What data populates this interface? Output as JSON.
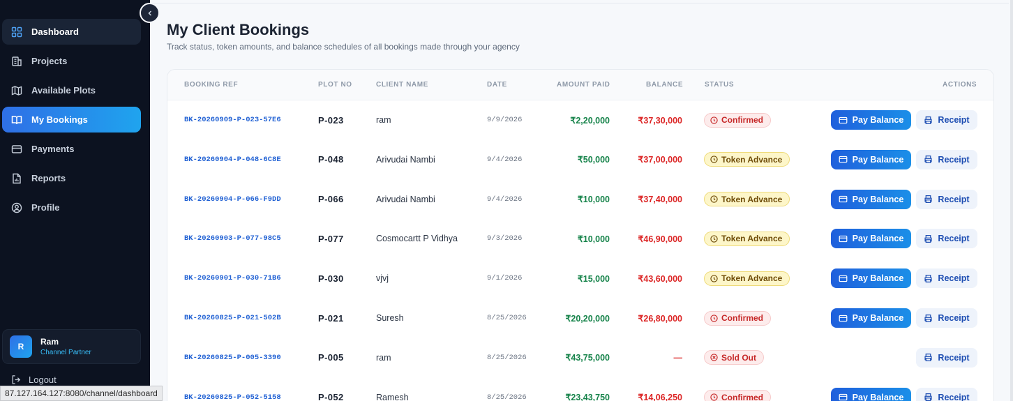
{
  "sidebar": {
    "items": [
      {
        "label": "Dashboard",
        "icon": "grid-icon"
      },
      {
        "label": "Projects",
        "icon": "building-icon"
      },
      {
        "label": "Available Plots",
        "icon": "map-icon"
      },
      {
        "label": "My Bookings",
        "icon": "book-icon"
      },
      {
        "label": "Payments",
        "icon": "card-icon"
      },
      {
        "label": "Reports",
        "icon": "report-icon"
      },
      {
        "label": "Profile",
        "icon": "user-circle-icon"
      }
    ],
    "user": {
      "initial": "R",
      "name": "Ram",
      "role": "Channel Partner"
    },
    "logout_label": "Logout"
  },
  "status_url": "87.127.164.127:8080/channel/dashboard",
  "header": {
    "title": "My Client Bookings",
    "subtitle": "Track status, token amounts, and balance schedules of all bookings made through your agency"
  },
  "table": {
    "columns": [
      "BOOKING REF",
      "PLOT NO",
      "CLIENT NAME",
      "DATE",
      "AMOUNT PAID",
      "BALANCE",
      "STATUS",
      "ACTIONS"
    ],
    "rows": [
      {
        "ref": "BK-20260909-P-023-57E6",
        "plot": "P-023",
        "client": "ram",
        "date": "9/9/2026",
        "paid": "₹2,20,000",
        "balance": "₹37,30,000",
        "status": "Confirmed",
        "pay": true
      },
      {
        "ref": "BK-20260904-P-048-6C8E",
        "plot": "P-048",
        "client": "Arivudai Nambi",
        "date": "9/4/2026",
        "paid": "₹50,000",
        "balance": "₹37,00,000",
        "status": "Token Advance",
        "pay": true
      },
      {
        "ref": "BK-20260904-P-066-F9DD",
        "plot": "P-066",
        "client": "Arivudai Nambi",
        "date": "9/4/2026",
        "paid": "₹10,000",
        "balance": "₹37,40,000",
        "status": "Token Advance",
        "pay": true
      },
      {
        "ref": "BK-20260903-P-077-98C5",
        "plot": "P-077",
        "client": "Cosmocartt P Vidhya",
        "date": "9/3/2026",
        "paid": "₹10,000",
        "balance": "₹46,90,000",
        "status": "Token Advance",
        "pay": true
      },
      {
        "ref": "BK-20260901-P-030-71B6",
        "plot": "P-030",
        "client": "vjvj",
        "date": "9/1/2026",
        "paid": "₹15,000",
        "balance": "₹43,60,000",
        "status": "Token Advance",
        "pay": true
      },
      {
        "ref": "BK-20260825-P-021-502B",
        "plot": "P-021",
        "client": "Suresh",
        "date": "8/25/2026",
        "paid": "₹20,20,000",
        "balance": "₹26,80,000",
        "status": "Confirmed",
        "pay": true
      },
      {
        "ref": "BK-20260825-P-005-3390",
        "plot": "P-005",
        "client": "ram",
        "date": "8/25/2026",
        "paid": "₹43,75,000",
        "balance": "—",
        "status": "Sold Out",
        "pay": false
      },
      {
        "ref": "BK-20260825-P-052-5158",
        "plot": "P-052",
        "client": "Ramesh",
        "date": "8/25/2026",
        "paid": "₹23,43,750",
        "balance": "₹14,06,250",
        "status": "Confirmed",
        "pay": true
      }
    ],
    "pay_label": "Pay Balance",
    "receipt_label": "Receipt"
  },
  "colors": {
    "sidebar_bg": "#0c1220",
    "accent": "#2f6fe6",
    "paid_green": "#16834a",
    "balance_red": "#dc2626"
  }
}
